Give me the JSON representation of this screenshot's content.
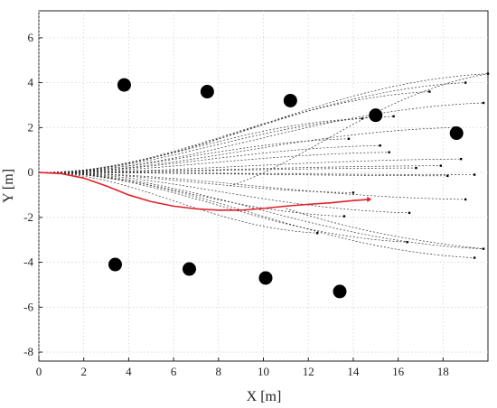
{
  "chart_data": {
    "type": "scatter",
    "xlabel": "X [m]",
    "ylabel": "Y [m]",
    "xlim": [
      0,
      20
    ],
    "ylim": [
      -8.4,
      7.2
    ],
    "xticks": [
      0,
      2,
      4,
      6,
      8,
      10,
      12,
      14,
      16,
      18
    ],
    "yticks": [
      -8,
      -6,
      -4,
      -2,
      0,
      2,
      4,
      6
    ],
    "grid": true,
    "colors": {
      "selected_path": "#e0202a",
      "candidate_paths": "#333333",
      "obstacles": "#000000"
    },
    "obstacles": [
      {
        "x": 3.8,
        "y": 3.9
      },
      {
        "x": 7.5,
        "y": 3.6
      },
      {
        "x": 11.2,
        "y": 3.2
      },
      {
        "x": 15.0,
        "y": 2.55
      },
      {
        "x": 18.6,
        "y": 1.75
      },
      {
        "x": 3.4,
        "y": -4.1
      },
      {
        "x": 6.7,
        "y": -4.3
      },
      {
        "x": 10.1,
        "y": -4.7
      },
      {
        "x": 13.4,
        "y": -5.3
      }
    ],
    "selected_path": {
      "x": [
        0,
        1,
        2,
        3,
        4,
        5,
        6,
        7,
        8,
        9,
        10,
        11,
        12,
        13,
        14,
        14.7
      ],
      "y": [
        0,
        -0.05,
        -0.25,
        -0.6,
        -1.0,
        -1.3,
        -1.5,
        -1.62,
        -1.68,
        -1.68,
        -1.6,
        -1.5,
        -1.42,
        -1.35,
        -1.25,
        -1.2
      ]
    },
    "candidate_paths": [
      {
        "end": [
          20.0,
          4.4
        ]
      },
      {
        "end": [
          19.0,
          4.0
        ]
      },
      {
        "end": [
          17.4,
          3.6
        ]
      },
      {
        "end": [
          19.8,
          3.1
        ]
      },
      {
        "end": [
          15.8,
          2.5
        ]
      },
      {
        "end": [
          14.4,
          2.4
        ]
      },
      {
        "end": [
          18.5,
          2.0
        ]
      },
      {
        "end": [
          13.8,
          1.5
        ]
      },
      {
        "end": [
          15.2,
          1.2
        ]
      },
      {
        "end": [
          15.6,
          0.9
        ]
      },
      {
        "end": [
          18.8,
          0.6
        ]
      },
      {
        "end": [
          17.9,
          0.3
        ]
      },
      {
        "end": [
          16.8,
          0.2
        ]
      },
      {
        "end": [
          19.4,
          -0.1
        ]
      },
      {
        "end": [
          18.2,
          -0.15
        ]
      },
      {
        "end": [
          14.0,
          -0.9
        ]
      },
      {
        "end": [
          19.0,
          -1.2
        ]
      },
      {
        "end": [
          16.5,
          -1.8
        ]
      },
      {
        "end": [
          13.6,
          -1.95
        ]
      },
      {
        "end": [
          12.4,
          -2.7
        ]
      },
      {
        "end": [
          16.4,
          -3.1
        ]
      },
      {
        "end": [
          19.8,
          -3.4
        ]
      },
      {
        "end": [
          19.4,
          -3.8
        ]
      }
    ]
  }
}
